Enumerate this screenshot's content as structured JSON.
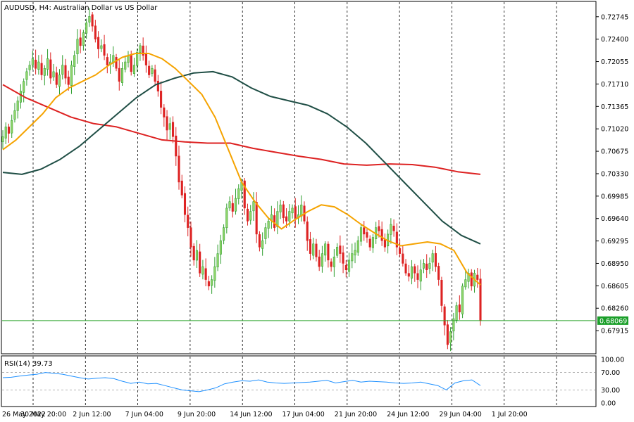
{
  "chart_data": {
    "type": "candlestick",
    "symbol": "AUDUSD",
    "timeframe": "H4",
    "title": "AUDUSD, H4:  Australian Dollar vs US Dollar",
    "ylim": [
      0.6757,
      0.7297
    ],
    "price_ticks": [
      "0.72745",
      "0.72400",
      "0.72055",
      "0.71710",
      "0.71365",
      "0.71020",
      "0.70675",
      "0.70330",
      "0.69985",
      "0.69640",
      "0.69295",
      "0.68950",
      "0.68605",
      "0.68260",
      "0.67915"
    ],
    "current_price": "0.68069",
    "x_labels": [
      "26 May 2022",
      "30 May 20:00",
      "2 Jun 12:00",
      "7 Jun 04:00",
      "9 Jun 20:00",
      "14 Jun 12:00",
      "17 Jun 04:00",
      "21 Jun 20:00",
      "24 Jun 12:00",
      "29 Jun 04:00",
      "1 Jul 20:00"
    ],
    "candles_close": [
      0.709,
      0.7105,
      0.7095,
      0.7115,
      0.713,
      0.7145,
      0.716,
      0.7175,
      0.719,
      0.72,
      0.721,
      0.7195,
      0.7205,
      0.7185,
      0.7195,
      0.721,
      0.718,
      0.719,
      0.717,
      0.7185,
      0.72,
      0.718,
      0.717,
      0.72,
      0.7215,
      0.724,
      0.723,
      0.725,
      0.7265,
      0.7275,
      0.726,
      0.724,
      0.7225,
      0.723,
      0.7215,
      0.72,
      0.7205,
      0.7215,
      0.7195,
      0.7175,
      0.7195,
      0.7205,
      0.7215,
      0.719,
      0.72,
      0.722,
      0.723,
      0.7215,
      0.72,
      0.7185,
      0.7195,
      0.7175,
      0.716,
      0.7135,
      0.712,
      0.71,
      0.711,
      0.709,
      0.706,
      0.702,
      0.7,
      0.697,
      0.695,
      0.692,
      0.69,
      0.6915,
      0.688,
      0.689,
      0.687,
      0.686,
      0.687,
      0.689,
      0.691,
      0.693,
      0.695,
      0.698,
      0.699,
      0.6975,
      0.6995,
      0.701,
      0.702,
      0.698,
      0.696,
      0.6975,
      0.699,
      0.694,
      0.692,
      0.693,
      0.695,
      0.696,
      0.697,
      0.695,
      0.6975,
      0.6985,
      0.6965,
      0.696,
      0.6975,
      0.698,
      0.6965,
      0.697,
      0.6985,
      0.696,
      0.693,
      0.691,
      0.6925,
      0.6905,
      0.689,
      0.691,
      0.6925,
      0.69,
      0.689,
      0.6905,
      0.692,
      0.691,
      0.6895,
      0.6885,
      0.69,
      0.691,
      0.6915,
      0.693,
      0.695,
      0.694,
      0.6935,
      0.692,
      0.6935,
      0.695,
      0.6945,
      0.693,
      0.692,
      0.694,
      0.6955,
      0.6945,
      0.692,
      0.691,
      0.6895,
      0.688,
      0.6875,
      0.689,
      0.688,
      0.687,
      0.6885,
      0.6895,
      0.6885,
      0.6895,
      0.691,
      0.689,
      0.687,
      0.683,
      0.68,
      0.677,
      0.679,
      0.681,
      0.683,
      0.682,
      0.686,
      0.687,
      0.688,
      0.686,
      0.688,
      0.687,
      0.6807
    ],
    "ma_fast": {
      "color": "#f5a300",
      "values": [
        0.707,
        0.7085,
        0.7105,
        0.7125,
        0.715,
        0.7165,
        0.7175,
        0.7185,
        0.72,
        0.7212,
        0.7218,
        0.7218,
        0.721,
        0.7195,
        0.7175,
        0.7155,
        0.712,
        0.707,
        0.702,
        0.699,
        0.6965,
        0.6948,
        0.6962,
        0.6975,
        0.6985,
        0.6982,
        0.697,
        0.6955,
        0.6942,
        0.693,
        0.6922,
        0.6925,
        0.6928,
        0.6925,
        0.6915,
        0.688,
        0.6862
      ]
    },
    "ma_mid": {
      "color": "#1f4e45",
      "values": [
        0.7035,
        0.7032,
        0.704,
        0.7055,
        0.7075,
        0.71,
        0.7125,
        0.715,
        0.717,
        0.718,
        0.7188,
        0.719,
        0.7182,
        0.7165,
        0.7152,
        0.7145,
        0.7138,
        0.7125,
        0.7105,
        0.708,
        0.705,
        0.702,
        0.699,
        0.696,
        0.6938,
        0.6925
      ]
    },
    "ma_slow": {
      "color": "#dd2222",
      "values": [
        0.717,
        0.715,
        0.7135,
        0.712,
        0.711,
        0.7105,
        0.7095,
        0.7085,
        0.7082,
        0.708,
        0.708,
        0.7072,
        0.7066,
        0.706,
        0.7055,
        0.7048,
        0.7046,
        0.7048,
        0.7047,
        0.7043,
        0.7036,
        0.7032
      ]
    },
    "rsi": {
      "label": "RSI(14) 39.73",
      "ticks": [
        "100.00",
        "70.00",
        "30.00",
        "0.00"
      ],
      "levels": [
        70,
        30
      ],
      "values": [
        58,
        59,
        62,
        64,
        66,
        70,
        68,
        66,
        62,
        58,
        55,
        57,
        58,
        56,
        50,
        45,
        48,
        44,
        45,
        40,
        35,
        30,
        28,
        26,
        30,
        35,
        44,
        48,
        51,
        50,
        53,
        48,
        46,
        45,
        46,
        47,
        48,
        50,
        52,
        46,
        49,
        52,
        48,
        50,
        49,
        48,
        46,
        45,
        46,
        48,
        44,
        40,
        30,
        46,
        51,
        53,
        40
      ]
    },
    "colors": {
      "bull": "#2e9e2e",
      "bull_body": "#8fd46a",
      "bear": "#dd2222",
      "grid": "#000000",
      "current_line": "#2aa52a",
      "rsi_line": "#1e90ff",
      "price_label_bg": "#1b9f2a"
    }
  }
}
